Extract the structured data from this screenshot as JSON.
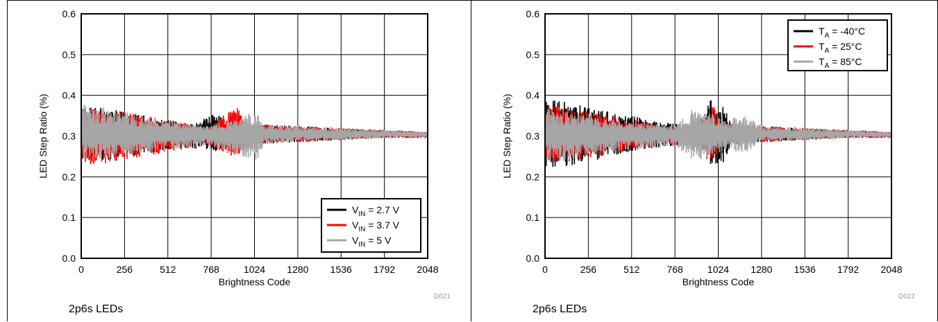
{
  "chart_data": [
    {
      "type": "line",
      "title": "",
      "xlabel": "Brightness Code",
      "ylabel": "LED Step Ratio (%)",
      "xlim": [
        0,
        2048
      ],
      "ylim": [
        0.0,
        0.6
      ],
      "xticks": [
        "0",
        "256",
        "512",
        "768",
        "1024",
        "1280",
        "1536",
        "1792",
        "2048"
      ],
      "yticks": [
        "0.0",
        "0.1",
        "0.2",
        "0.3",
        "0.4",
        "0.5",
        "0.6"
      ],
      "grid": true,
      "legend_position": "bottom-right",
      "series": [
        {
          "name_main": "V",
          "name_sub": "IN",
          "name_rest": " = 2.7 V",
          "color": "#000000",
          "x": [
            0,
            128,
            256,
            384,
            512,
            640,
            768,
            800,
            830,
            860,
            1024,
            1280,
            1536,
            1792,
            2048
          ],
          "y_max": [
            0.37,
            0.37,
            0.36,
            0.35,
            0.34,
            0.33,
            0.35,
            0.36,
            0.345,
            0.33,
            0.33,
            0.325,
            0.32,
            0.315,
            0.31
          ],
          "y_min": [
            0.24,
            0.24,
            0.245,
            0.255,
            0.265,
            0.27,
            0.265,
            0.26,
            0.27,
            0.28,
            0.28,
            0.285,
            0.29,
            0.295,
            0.295
          ]
        },
        {
          "name_main": "V",
          "name_sub": "IN",
          "name_rest": " = 3.7 V",
          "color": "#ff0000",
          "x": [
            0,
            128,
            256,
            384,
            512,
            640,
            768,
            880,
            940,
            990,
            1024,
            1280,
            1536,
            1792,
            2048
          ],
          "y_max": [
            0.37,
            0.365,
            0.36,
            0.35,
            0.34,
            0.33,
            0.325,
            0.37,
            0.37,
            0.33,
            0.33,
            0.325,
            0.32,
            0.315,
            0.31
          ],
          "y_min": [
            0.225,
            0.23,
            0.24,
            0.25,
            0.26,
            0.27,
            0.275,
            0.245,
            0.245,
            0.28,
            0.28,
            0.285,
            0.29,
            0.295,
            0.295
          ]
        },
        {
          "name_main": "V",
          "name_sub": "IN",
          "name_rest": " = 5 V",
          "color": "#a6a6a6",
          "x": [
            0,
            128,
            256,
            384,
            512,
            640,
            768,
            1000,
            1040,
            1080,
            1280,
            1536,
            1792,
            2048
          ],
          "y_max": [
            0.38,
            0.375,
            0.36,
            0.35,
            0.34,
            0.33,
            0.325,
            0.36,
            0.36,
            0.33,
            0.325,
            0.32,
            0.315,
            0.31
          ],
          "y_min": [
            0.24,
            0.245,
            0.25,
            0.26,
            0.265,
            0.27,
            0.275,
            0.24,
            0.24,
            0.28,
            0.285,
            0.29,
            0.295,
            0.295
          ]
        }
      ]
    },
    {
      "type": "line",
      "title": "",
      "xlabel": "Brightness Code",
      "ylabel": "LED Step Ratio (%)",
      "xlim": [
        0,
        2048
      ],
      "ylim": [
        0.0,
        0.6
      ],
      "xticks": [
        "0",
        "256",
        "512",
        "768",
        "1024",
        "1280",
        "1536",
        "1792",
        "2048"
      ],
      "yticks": [
        "0.0",
        "0.1",
        "0.2",
        "0.3",
        "0.4",
        "0.5",
        "0.6"
      ],
      "grid": true,
      "legend_position": "top-right",
      "series": [
        {
          "name_main": "T",
          "name_sub": "A",
          "name_rest": " = -40°C",
          "color": "#000000",
          "x": [
            0,
            128,
            256,
            384,
            512,
            640,
            768,
            900,
            980,
            1060,
            1100,
            1280,
            1536,
            1792,
            2048
          ],
          "y_max": [
            0.39,
            0.385,
            0.37,
            0.36,
            0.35,
            0.34,
            0.33,
            0.32,
            0.39,
            0.38,
            0.33,
            0.325,
            0.32,
            0.315,
            0.31
          ],
          "y_min": [
            0.22,
            0.225,
            0.235,
            0.25,
            0.26,
            0.27,
            0.275,
            0.28,
            0.23,
            0.235,
            0.28,
            0.285,
            0.29,
            0.295,
            0.295
          ]
        },
        {
          "name_main": "T",
          "name_sub": "A",
          "name_rest": " = 25°C",
          "color": "#ff0000",
          "x": [
            0,
            128,
            256,
            384,
            512,
            640,
            768,
            900,
            960,
            1000,
            1040,
            1280,
            1536,
            1792,
            2048
          ],
          "y_max": [
            0.38,
            0.37,
            0.36,
            0.35,
            0.34,
            0.33,
            0.325,
            0.32,
            0.38,
            0.375,
            0.33,
            0.325,
            0.32,
            0.315,
            0.31
          ],
          "y_min": [
            0.23,
            0.235,
            0.245,
            0.255,
            0.265,
            0.27,
            0.275,
            0.28,
            0.24,
            0.245,
            0.28,
            0.285,
            0.29,
            0.295,
            0.295
          ]
        },
        {
          "name_main": "T",
          "name_sub": "A",
          "name_rest": " = 85°C",
          "color": "#a6a6a6",
          "x": [
            0,
            128,
            256,
            384,
            512,
            640,
            768,
            880,
            920,
            1100,
            1160,
            1280,
            1536,
            1792,
            2048
          ],
          "y_max": [
            0.37,
            0.365,
            0.355,
            0.345,
            0.335,
            0.33,
            0.325,
            0.37,
            0.37,
            0.34,
            0.36,
            0.325,
            0.32,
            0.315,
            0.31
          ],
          "y_min": [
            0.235,
            0.24,
            0.25,
            0.26,
            0.265,
            0.27,
            0.275,
            0.24,
            0.24,
            0.27,
            0.25,
            0.285,
            0.29,
            0.295,
            0.295
          ]
        }
      ]
    }
  ],
  "panels": [
    {
      "caption": "2p6s LEDs",
      "figure_id": "D021"
    },
    {
      "caption": "2p6s LEDs",
      "figure_id": "D022"
    }
  ]
}
